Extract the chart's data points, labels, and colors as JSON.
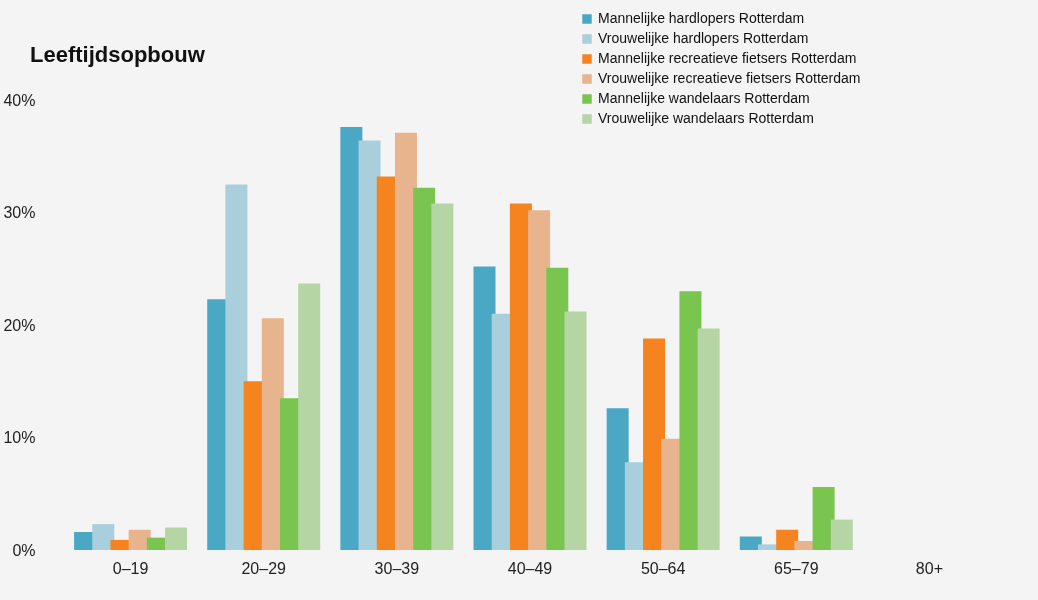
{
  "chart_data": {
    "type": "bar",
    "title": "Leeftijdsopbouw",
    "categories": [
      "0–19",
      "20–29",
      "30–39",
      "40–49",
      "50–64",
      "65–79",
      "80+"
    ],
    "series": [
      {
        "name": "Mannelijke hardlopers Rotterdam",
        "color": "#4aa8c5",
        "values": [
          1.6,
          22.3,
          37.6,
          25.2,
          12.6,
          1.2,
          0
        ]
      },
      {
        "name": "Vrouwelijke hardlopers Rotterdam",
        "color": "#a9cfdc",
        "values": [
          2.3,
          32.5,
          36.4,
          21.0,
          7.8,
          0.5,
          0
        ]
      },
      {
        "name": "Mannelijke recreatieve fietsers Rotterdam",
        "color": "#f5841f",
        "values": [
          0.9,
          15.0,
          33.2,
          30.8,
          18.8,
          1.8,
          0
        ]
      },
      {
        "name": "Vrouwelijke recreatieve fietsers Rotterdam",
        "color": "#e8b48e",
        "values": [
          1.8,
          20.6,
          37.1,
          30.2,
          9.9,
          0.8,
          0
        ]
      },
      {
        "name": "Mannelijke wandelaars Rotterdam",
        "color": "#79c54f",
        "values": [
          1.1,
          13.5,
          32.2,
          25.1,
          23.0,
          5.6,
          0
        ]
      },
      {
        "name": "Vrouwelijke wandelaars Rotterdam",
        "color": "#b5d6a4",
        "values": [
          2.0,
          23.7,
          30.8,
          21.2,
          19.7,
          2.7,
          0
        ]
      }
    ],
    "ylim": [
      0,
      40
    ],
    "yticks": [
      {
        "value": 0,
        "label": "0%"
      },
      {
        "value": 10,
        "label": "10%"
      },
      {
        "value": 20,
        "label": "20%"
      },
      {
        "value": 30,
        "label": "30%"
      },
      {
        "value": 40,
        "label": "40%"
      }
    ],
    "grid": false,
    "legend": "top right"
  }
}
